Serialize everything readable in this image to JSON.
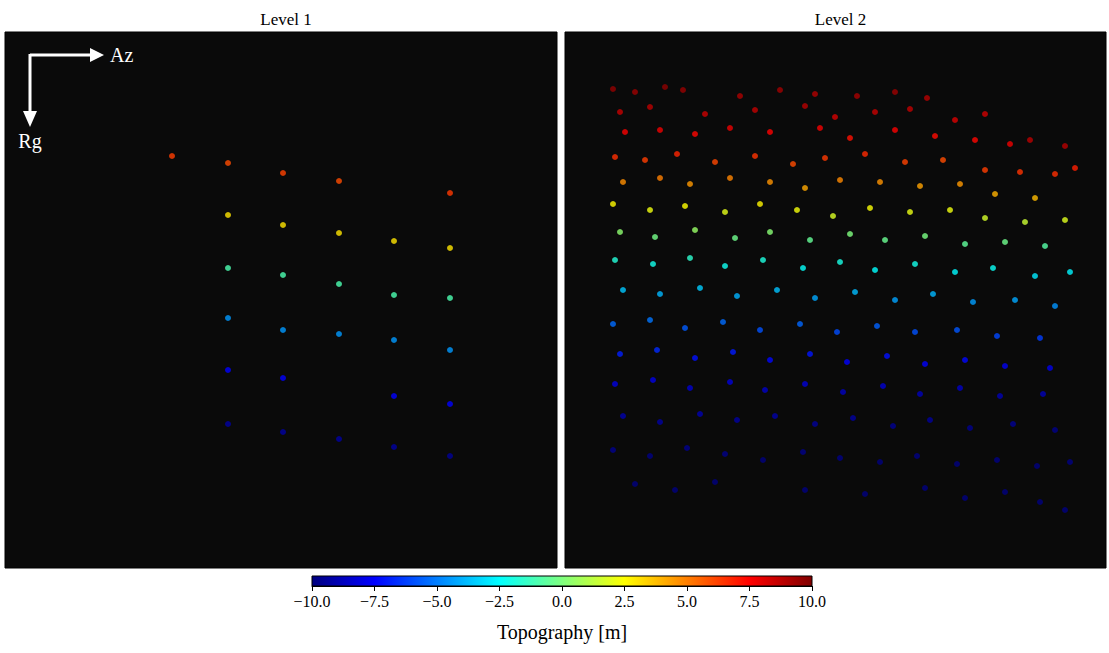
{
  "chart_data": [
    {
      "type": "scatter",
      "title": "Level 1",
      "marker": "circle",
      "tick_labels": false,
      "annotations": [
        "Az",
        "Rg"
      ],
      "xlim": [
        0,
        552
      ],
      "ylim": [
        0,
        536
      ],
      "points": [
        [
          167,
          124,
          6.3
        ],
        [
          223,
          131,
          6.0
        ],
        [
          223,
          183,
          3.0
        ],
        [
          223,
          236,
          -1.0
        ],
        [
          223,
          286,
          -4.5
        ],
        [
          223,
          338,
          -7.5
        ],
        [
          223,
          392,
          -9.3
        ],
        [
          278,
          141,
          6.2
        ],
        [
          278,
          193,
          3.0
        ],
        [
          278,
          243,
          -1.0
        ],
        [
          278,
          298,
          -4.5
        ],
        [
          278,
          346,
          -7.5
        ],
        [
          278,
          400,
          -9.3
        ],
        [
          334,
          149,
          6.0
        ],
        [
          334,
          201,
          3.0
        ],
        [
          334,
          252,
          -1.0
        ],
        [
          334,
          302,
          -4.5
        ],
        [
          334,
          407,
          -9.3
        ],
        [
          389,
          209,
          3.0
        ],
        [
          389,
          263,
          -1.0
        ],
        [
          389,
          308,
          -4.5
        ],
        [
          389,
          364,
          -7.5
        ],
        [
          389,
          415,
          -9.3
        ],
        [
          445,
          161,
          6.4
        ],
        [
          445,
          216,
          3.0
        ],
        [
          445,
          266,
          -1.0
        ],
        [
          445,
          318,
          -4.5
        ],
        [
          445,
          372,
          -7.5
        ],
        [
          445,
          424,
          -9.5
        ]
      ]
    },
    {
      "type": "scatter",
      "title": "Level 2",
      "marker": "circle",
      "tick_labels": false,
      "xlim": [
        0,
        541
      ],
      "ylim": [
        0,
        536
      ],
      "points": [
        [
          48,
          57,
          9.6
        ],
        [
          70,
          60,
          9.4
        ],
        [
          100,
          55,
          9.7
        ],
        [
          118,
          58,
          9.5
        ],
        [
          175,
          64,
          9.1
        ],
        [
          215,
          58,
          9.3
        ],
        [
          250,
          62,
          9.0
        ],
        [
          292,
          64,
          9.2
        ],
        [
          330,
          60,
          9.4
        ],
        [
          362,
          66,
          8.9
        ],
        [
          55,
          80,
          8.6
        ],
        [
          85,
          75,
          8.8
        ],
        [
          140,
          82,
          8.5
        ],
        [
          190,
          78,
          8.7
        ],
        [
          240,
          74,
          8.9
        ],
        [
          270,
          85,
          8.3
        ],
        [
          310,
          80,
          8.6
        ],
        [
          345,
          77,
          8.7
        ],
        [
          390,
          88,
          8.2
        ],
        [
          420,
          82,
          8.4
        ],
        [
          465,
          108,
          8.8
        ],
        [
          500,
          114,
          8.9
        ],
        [
          60,
          100,
          7.6
        ],
        [
          95,
          98,
          7.8
        ],
        [
          130,
          102,
          7.4
        ],
        [
          165,
          96,
          7.9
        ],
        [
          205,
          100,
          7.5
        ],
        [
          255,
          96,
          7.7
        ],
        [
          285,
          106,
          7.2
        ],
        [
          330,
          98,
          7.6
        ],
        [
          370,
          104,
          7.3
        ],
        [
          410,
          108,
          7.4
        ],
        [
          445,
          112,
          7.8
        ],
        [
          50,
          125,
          6.6
        ],
        [
          80,
          128,
          6.3
        ],
        [
          112,
          122,
          6.8
        ],
        [
          150,
          130,
          6.1
        ],
        [
          190,
          124,
          6.5
        ],
        [
          228,
          132,
          6.0
        ],
        [
          260,
          126,
          6.4
        ],
        [
          300,
          122,
          6.7
        ],
        [
          340,
          130,
          6.2
        ],
        [
          378,
          128,
          6.0
        ],
        [
          420,
          138,
          6.3
        ],
        [
          455,
          140,
          6.5
        ],
        [
          490,
          142,
          6.6
        ],
        [
          510,
          136,
          6.9
        ],
        [
          58,
          150,
          4.7
        ],
        [
          95,
          146,
          5.0
        ],
        [
          125,
          152,
          4.5
        ],
        [
          165,
          146,
          4.9
        ],
        [
          205,
          150,
          4.6
        ],
        [
          240,
          156,
          4.2
        ],
        [
          275,
          148,
          4.8
        ],
        [
          315,
          150,
          4.6
        ],
        [
          355,
          154,
          4.3
        ],
        [
          395,
          152,
          4.5
        ],
        [
          430,
          162,
          4.0
        ],
        [
          470,
          166,
          3.8
        ],
        [
          48,
          172,
          2.6
        ],
        [
          85,
          178,
          2.2
        ],
        [
          120,
          174,
          2.5
        ],
        [
          160,
          180,
          2.0
        ],
        [
          195,
          172,
          2.7
        ],
        [
          232,
          178,
          2.3
        ],
        [
          268,
          184,
          1.8
        ],
        [
          305,
          176,
          2.4
        ],
        [
          345,
          180,
          2.1
        ],
        [
          385,
          178,
          2.2
        ],
        [
          420,
          186,
          1.7
        ],
        [
          460,
          190,
          1.5
        ],
        [
          500,
          188,
          1.9
        ],
        [
          55,
          200,
          0.3
        ],
        [
          90,
          205,
          -0.2
        ],
        [
          130,
          198,
          0.5
        ],
        [
          170,
          206,
          -0.3
        ],
        [
          205,
          200,
          0.2
        ],
        [
          245,
          208,
          -0.5
        ],
        [
          285,
          202,
          0.0
        ],
        [
          320,
          208,
          -0.4
        ],
        [
          360,
          204,
          -0.1
        ],
        [
          400,
          212,
          -0.6
        ],
        [
          440,
          210,
          -0.3
        ],
        [
          480,
          214,
          -0.8
        ],
        [
          50,
          228,
          -1.8
        ],
        [
          88,
          232,
          -2.1
        ],
        [
          125,
          226,
          -1.6
        ],
        [
          160,
          234,
          -2.2
        ],
        [
          198,
          228,
          -1.9
        ],
        [
          238,
          236,
          -2.4
        ],
        [
          275,
          230,
          -2.0
        ],
        [
          310,
          238,
          -2.5
        ],
        [
          350,
          232,
          -2.1
        ],
        [
          390,
          240,
          -2.6
        ],
        [
          428,
          236,
          -2.3
        ],
        [
          470,
          244,
          -2.9
        ],
        [
          505,
          240,
          -2.7
        ],
        [
          58,
          258,
          -3.6
        ],
        [
          95,
          262,
          -3.9
        ],
        [
          135,
          256,
          -3.5
        ],
        [
          172,
          264,
          -4.0
        ],
        [
          212,
          258,
          -3.7
        ],
        [
          250,
          266,
          -4.2
        ],
        [
          290,
          260,
          -3.8
        ],
        [
          330,
          268,
          -4.3
        ],
        [
          368,
          262,
          -3.9
        ],
        [
          408,
          270,
          -4.4
        ],
        [
          450,
          268,
          -4.2
        ],
        [
          490,
          274,
          -4.6
        ],
        [
          48,
          292,
          -5.4
        ],
        [
          85,
          288,
          -5.2
        ],
        [
          120,
          296,
          -5.7
        ],
        [
          158,
          290,
          -5.4
        ],
        [
          195,
          298,
          -5.9
        ],
        [
          235,
          292,
          -5.5
        ],
        [
          272,
          300,
          -6.0
        ],
        [
          312,
          294,
          -5.6
        ],
        [
          350,
          300,
          -5.9
        ],
        [
          392,
          298,
          -5.8
        ],
        [
          432,
          304,
          -6.1
        ],
        [
          475,
          306,
          -6.3
        ],
        [
          55,
          322,
          -6.9
        ],
        [
          92,
          318,
          -6.7
        ],
        [
          130,
          326,
          -7.2
        ],
        [
          168,
          320,
          -7.0
        ],
        [
          205,
          328,
          -7.4
        ],
        [
          245,
          322,
          -7.1
        ],
        [
          282,
          330,
          -7.5
        ],
        [
          322,
          324,
          -7.2
        ],
        [
          360,
          332,
          -7.6
        ],
        [
          400,
          328,
          -7.4
        ],
        [
          440,
          334,
          -7.8
        ],
        [
          485,
          336,
          -7.9
        ],
        [
          50,
          352,
          -8.1
        ],
        [
          88,
          348,
          -8.0
        ],
        [
          125,
          356,
          -8.4
        ],
        [
          165,
          350,
          -8.2
        ],
        [
          200,
          358,
          -8.6
        ],
        [
          240,
          352,
          -8.3
        ],
        [
          278,
          360,
          -8.7
        ],
        [
          318,
          354,
          -8.4
        ],
        [
          355,
          362,
          -8.8
        ],
        [
          395,
          356,
          -8.6
        ],
        [
          435,
          364,
          -8.9
        ],
        [
          478,
          362,
          -8.9
        ],
        [
          58,
          384,
          -9.1
        ],
        [
          95,
          390,
          -9.3
        ],
        [
          135,
          382,
          -9.0
        ],
        [
          172,
          388,
          -9.3
        ],
        [
          210,
          384,
          -9.2
        ],
        [
          250,
          392,
          -9.5
        ],
        [
          288,
          386,
          -9.3
        ],
        [
          328,
          394,
          -9.6
        ],
        [
          365,
          388,
          -9.4
        ],
        [
          405,
          396,
          -9.7
        ],
        [
          448,
          392,
          -9.6
        ],
        [
          490,
          398,
          -9.8
        ],
        [
          48,
          418,
          -9.7
        ],
        [
          85,
          424,
          -9.9
        ],
        [
          122,
          416,
          -9.7
        ],
        [
          160,
          422,
          -9.8
        ],
        [
          198,
          428,
          -10.0
        ],
        [
          238,
          420,
          -9.8
        ],
        [
          275,
          426,
          -9.9
        ],
        [
          315,
          430,
          -10.0
        ],
        [
          352,
          424,
          -9.9
        ],
        [
          392,
          432,
          -10.0
        ],
        [
          432,
          428,
          -9.9
        ],
        [
          472,
          434,
          -10.0
        ],
        [
          505,
          430,
          -9.9
        ],
        [
          70,
          452,
          -10.0
        ],
        [
          110,
          458,
          -10.0
        ],
        [
          150,
          450,
          -10.0
        ],
        [
          240,
          458,
          -10.0
        ],
        [
          300,
          462,
          -10.0
        ],
        [
          360,
          456,
          -10.0
        ],
        [
          400,
          466,
          -10.0
        ],
        [
          440,
          460,
          -10.0
        ],
        [
          475,
          470,
          -10.0
        ],
        [
          500,
          478,
          -10.0
        ]
      ]
    }
  ],
  "colorbar": {
    "title": "Topography [m]",
    "range": [
      -10,
      10
    ],
    "ticks": [
      {
        "value": -10,
        "label": "−10.0"
      },
      {
        "value": -7.5,
        "label": "−7.5"
      },
      {
        "value": -5,
        "label": "−5.0"
      },
      {
        "value": -2.5,
        "label": "−2.5"
      },
      {
        "value": 0,
        "label": "0.0"
      },
      2.5,
      {
        "value": 5,
        "label": "5.0"
      },
      7.5,
      {
        "value": 10,
        "label": "10.0"
      }
    ]
  }
}
